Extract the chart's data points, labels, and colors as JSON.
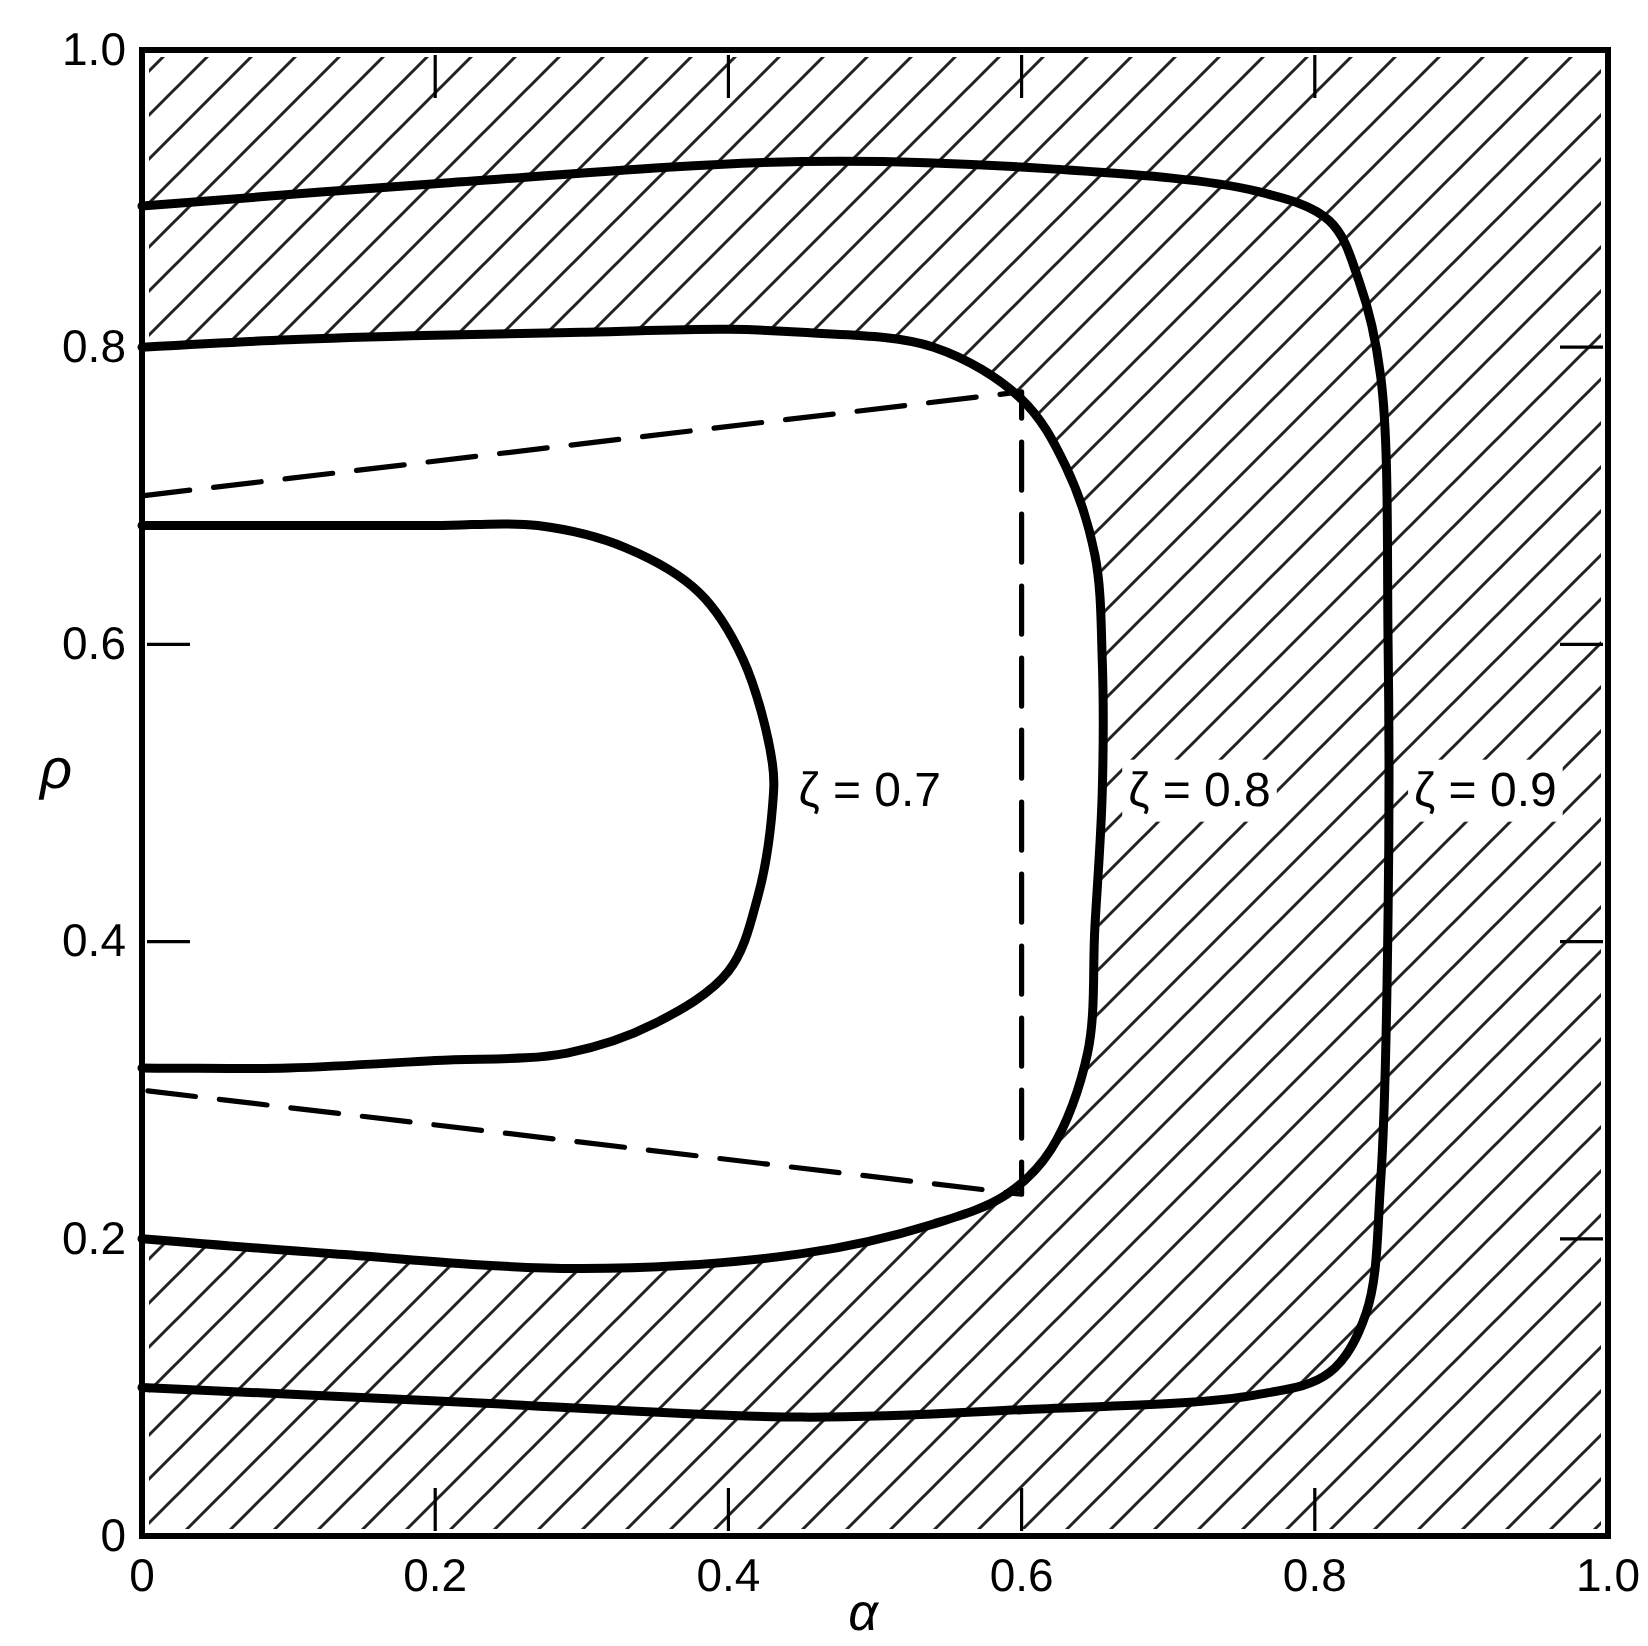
{
  "chart_data": {
    "type": "line",
    "xlabel": "α",
    "ylabel": "ρ",
    "xlim": [
      0,
      1
    ],
    "ylim": [
      0,
      1
    ],
    "xticks": [
      0,
      0.2,
      0.4,
      0.6,
      0.8,
      {
        "value": 1,
        "label": "1.0"
      }
    ],
    "yticks": [
      0,
      0.2,
      0.4,
      0.6,
      0.8,
      {
        "value": 1,
        "label": "1.0"
      }
    ],
    "line_style": "solid",
    "series": [
      {
        "name": "ζ = 0.7",
        "color": "#000000",
        "x": [
          0,
          0.1,
          0.2,
          0.27,
          0.33,
          0.38,
          0.41,
          0.43,
          0.43,
          0.42,
          0.4,
          0.35,
          0.29,
          0.2,
          0.1,
          0
        ],
        "values": [
          0.68,
          0.68,
          0.68,
          0.68,
          0.665,
          0.635,
          0.59,
          0.52,
          0.49,
          0.43,
          0.38,
          0.345,
          0.325,
          0.32,
          0.315,
          0.315
        ]
      },
      {
        "name": "ζ = 0.8",
        "color": "#000000",
        "x": [
          0,
          0.1,
          0.2,
          0.3,
          0.4,
          0.45,
          0.54,
          0.6,
          0.63,
          0.65,
          0.655,
          0.655,
          0.65,
          0.645,
          0.62,
          0.59,
          0.54,
          0.45,
          0.3,
          0.13,
          0
        ],
        "values": [
          0.8,
          0.805,
          0.808,
          0.81,
          0.812,
          0.81,
          0.8,
          0.765,
          0.72,
          0.66,
          0.59,
          0.5,
          0.41,
          0.325,
          0.26,
          0.23,
          0.21,
          0.19,
          0.18,
          0.19,
          0.2
        ]
      },
      {
        "name": "ζ = 0.9",
        "color": "#000000",
        "x": [
          0,
          0.2,
          0.45,
          0.62,
          0.76,
          0.81,
          0.83,
          0.845,
          0.85,
          0.85,
          0.845,
          0.835,
          0.81,
          0.76,
          0.6,
          0.45,
          0.22,
          0
        ],
        "values": [
          0.895,
          0.91,
          0.925,
          0.92,
          0.905,
          0.885,
          0.845,
          0.78,
          0.6,
          0.42,
          0.24,
          0.15,
          0.11,
          0.095,
          0.085,
          0.08,
          0.09,
          0.1
        ]
      },
      {
        "color": "#000000",
        "line_style": "dashed",
        "x": [
          0,
          0.6,
          0.6,
          0
        ],
        "values": [
          0.7,
          0.77,
          0.23,
          0.3
        ]
      }
    ]
  }
}
